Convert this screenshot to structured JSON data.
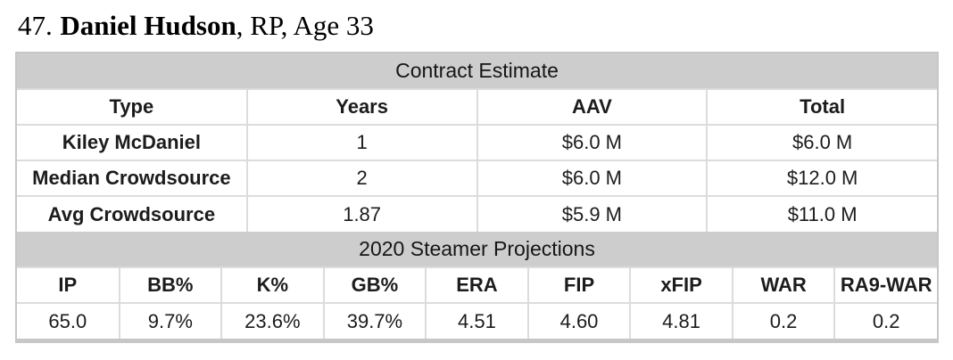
{
  "title": {
    "rank": "47.",
    "name": "Daniel Hudson",
    "suffix": ", RP, Age 33"
  },
  "contract_table": {
    "title": "Contract Estimate",
    "columns": [
      "Type",
      "Years",
      "AAV",
      "Total"
    ],
    "rows": [
      {
        "type": "Kiley McDaniel",
        "years": "1",
        "aav": "$6.0 M",
        "total": "$6.0 M"
      },
      {
        "type": "Median Crowdsource",
        "years": "2",
        "aav": "$6.0 M",
        "total": "$12.0 M"
      },
      {
        "type": "Avg Crowdsource",
        "years": "1.87",
        "aav": "$5.9 M",
        "total": "$11.0 M"
      }
    ]
  },
  "projections_table": {
    "title": "2020 Steamer Projections",
    "columns": [
      "IP",
      "BB%",
      "K%",
      "GB%",
      "ERA",
      "FIP",
      "xFIP",
      "WAR",
      "RA9-WAR"
    ],
    "values": [
      "65.0",
      "9.7%",
      "23.6%",
      "39.7%",
      "4.51",
      "4.60",
      "4.81",
      "0.2",
      "0.2"
    ]
  },
  "colors": {
    "band_background": "#cdcdcd",
    "inner_border": "#dcdcdc",
    "outer_border": "#c7c7c7",
    "text": "#1c1c1c"
  }
}
